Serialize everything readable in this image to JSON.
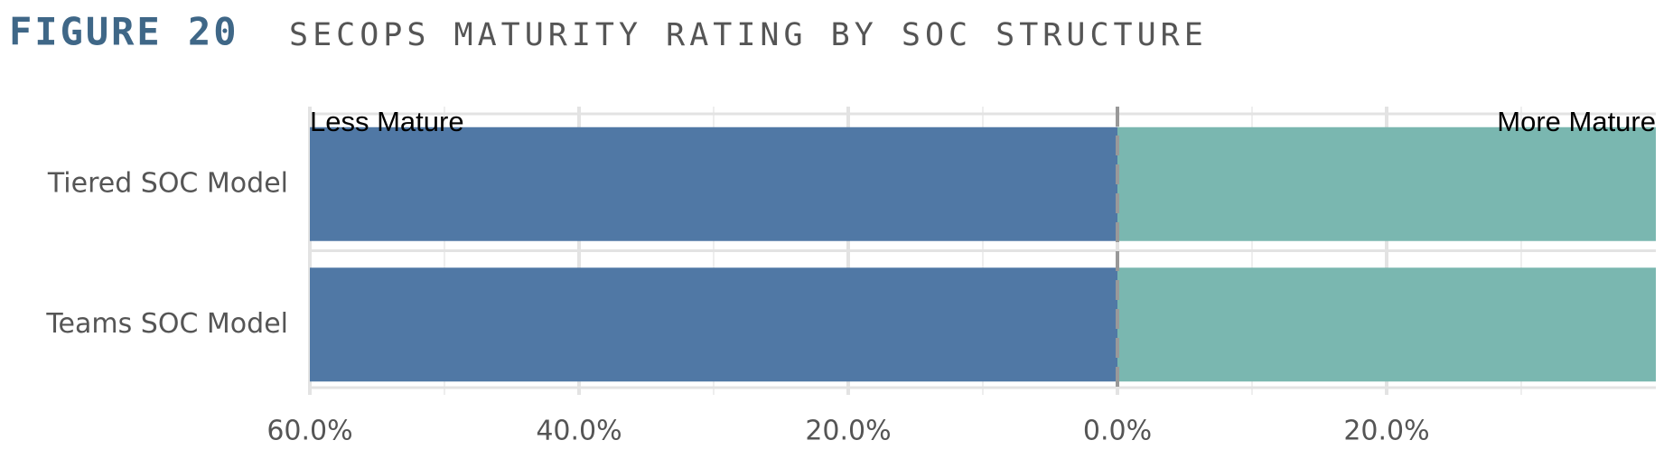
{
  "chart_data": {
    "type": "diverging-bar",
    "title": "FIGURE 20",
    "subtitle": "SECOPS MATURITY RATING BY SOC STRUCTURE",
    "categories": [
      "Tiered SOC Model",
      "Teams SOC Model"
    ],
    "series": [
      {
        "name": "Less Mature",
        "color": "#5078a5",
        "values": [
          -60,
          -60
        ]
      },
      {
        "name": "More Mature",
        "color": "#7ab7b0",
        "values": [
          40,
          40
        ]
      }
    ],
    "xlim": [
      -60,
      40
    ],
    "xticks": [
      {
        "value": -60,
        "label": "60.0%"
      },
      {
        "value": -40,
        "label": "40.0%"
      },
      {
        "value": -20,
        "label": "20.0%"
      },
      {
        "value": 0,
        "label": "0.0%"
      },
      {
        "value": 20,
        "label": "20.0%"
      }
    ],
    "xminor": [
      -50,
      -30,
      -10,
      10,
      30
    ],
    "grid": true
  }
}
